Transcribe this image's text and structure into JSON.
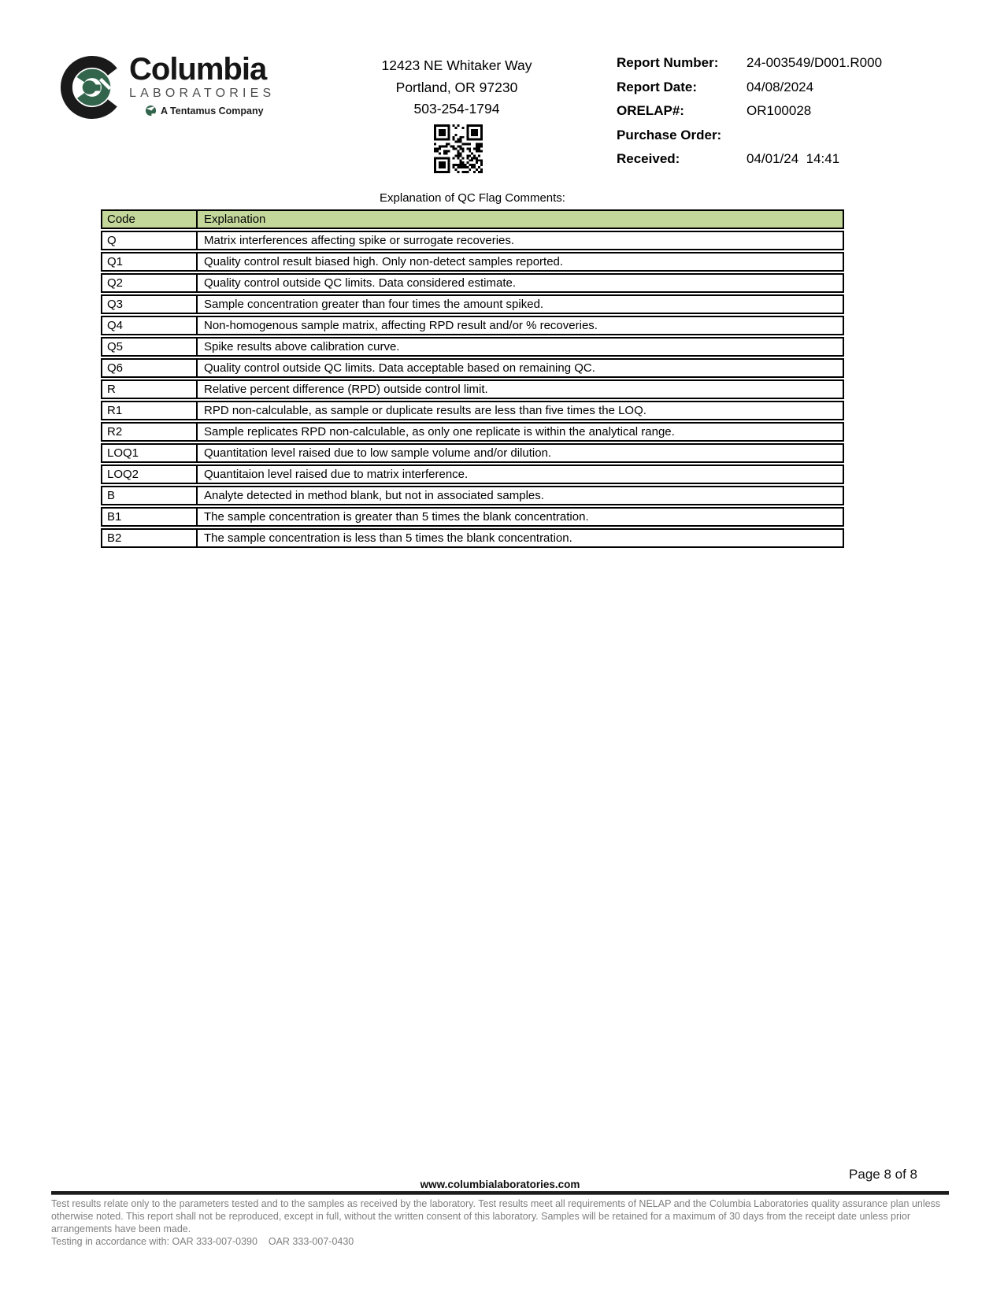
{
  "header": {
    "logo": {
      "name": "Columbia",
      "sub": "LABORATORIES",
      "tagline": "A Tentamus Company"
    },
    "address_lines": [
      "12423 NE Whitaker Way",
      "Portland, OR 97230",
      "503-254-1794"
    ],
    "report_info": [
      {
        "label": "Report Number:",
        "value": "24-003549/D001.R000"
      },
      {
        "label": "Report Date:",
        "value": "04/08/2024"
      },
      {
        "label": "ORELAP#:",
        "value": "OR100028"
      },
      {
        "label": "Purchase Order:",
        "value": ""
      },
      {
        "label": "Received:",
        "value": "04/01/24  14:41"
      }
    ]
  },
  "qc_table": {
    "title": "Explanation of QC Flag Comments:",
    "columns": [
      "Code",
      "Explanation"
    ],
    "rows": [
      {
        "code": "Q",
        "explanation": "Matrix interferences affecting spike or surrogate recoveries."
      },
      {
        "code": "Q1",
        "explanation": "Quality control result biased high. Only non-detect samples reported."
      },
      {
        "code": "Q2",
        "explanation": "Quality control outside QC limits. Data considered estimate."
      },
      {
        "code": "Q3",
        "explanation": "Sample concentration greater than four times the amount spiked."
      },
      {
        "code": "Q4",
        "explanation": "Non-homogenous sample matrix, affecting RPD result and/or % recoveries."
      },
      {
        "code": "Q5",
        "explanation": "Spike results above calibration curve."
      },
      {
        "code": "Q6",
        "explanation": "Quality control outside QC limits. Data acceptable based on remaining QC."
      },
      {
        "code": "R",
        "explanation": "Relative percent difference (RPD) outside control limit."
      },
      {
        "code": "R1",
        "explanation": "RPD non-calculable, as sample or duplicate results are less than five times the LOQ."
      },
      {
        "code": "R2",
        "explanation": "Sample replicates RPD non-calculable, as only one replicate is within the analytical range."
      },
      {
        "code": "LOQ1",
        "explanation": "Quantitation level raised due to low sample volume and/or dilution."
      },
      {
        "code": "LOQ2",
        "explanation": "Quantitaion level raised due to matrix interference."
      },
      {
        "code": "B",
        "explanation": "Analyte detected in method blank, but not in associated samples."
      },
      {
        "code": "B1",
        "explanation": "The sample concentration is greater than 5 times the blank concentration."
      },
      {
        "code": "B2",
        "explanation": "The sample concentration is less than 5 times the blank concentration."
      }
    ]
  },
  "footer": {
    "page_label": "Page 8 of 8",
    "website": "www.columbialaboratories.com",
    "disclaimer": "Test results relate only to the parameters tested and to the samples as received by the laboratory. Test results meet all requirements of NELAP and the Columbia Laboratories quality assurance plan unless otherwise noted. This report shall not be reproduced, except in full, without the written consent of this laboratory. Samples will be retained for a maximum of 30 days from the receipt date unless prior arrangements have been made.",
    "testing_note": "Testing in accordance with: OAR 333-007-0390    OAR 333-007-0430"
  },
  "colors": {
    "table_header_green": "#c4d79b",
    "logo_green": "#33654d",
    "footer_gray": "#7f7f7f"
  }
}
